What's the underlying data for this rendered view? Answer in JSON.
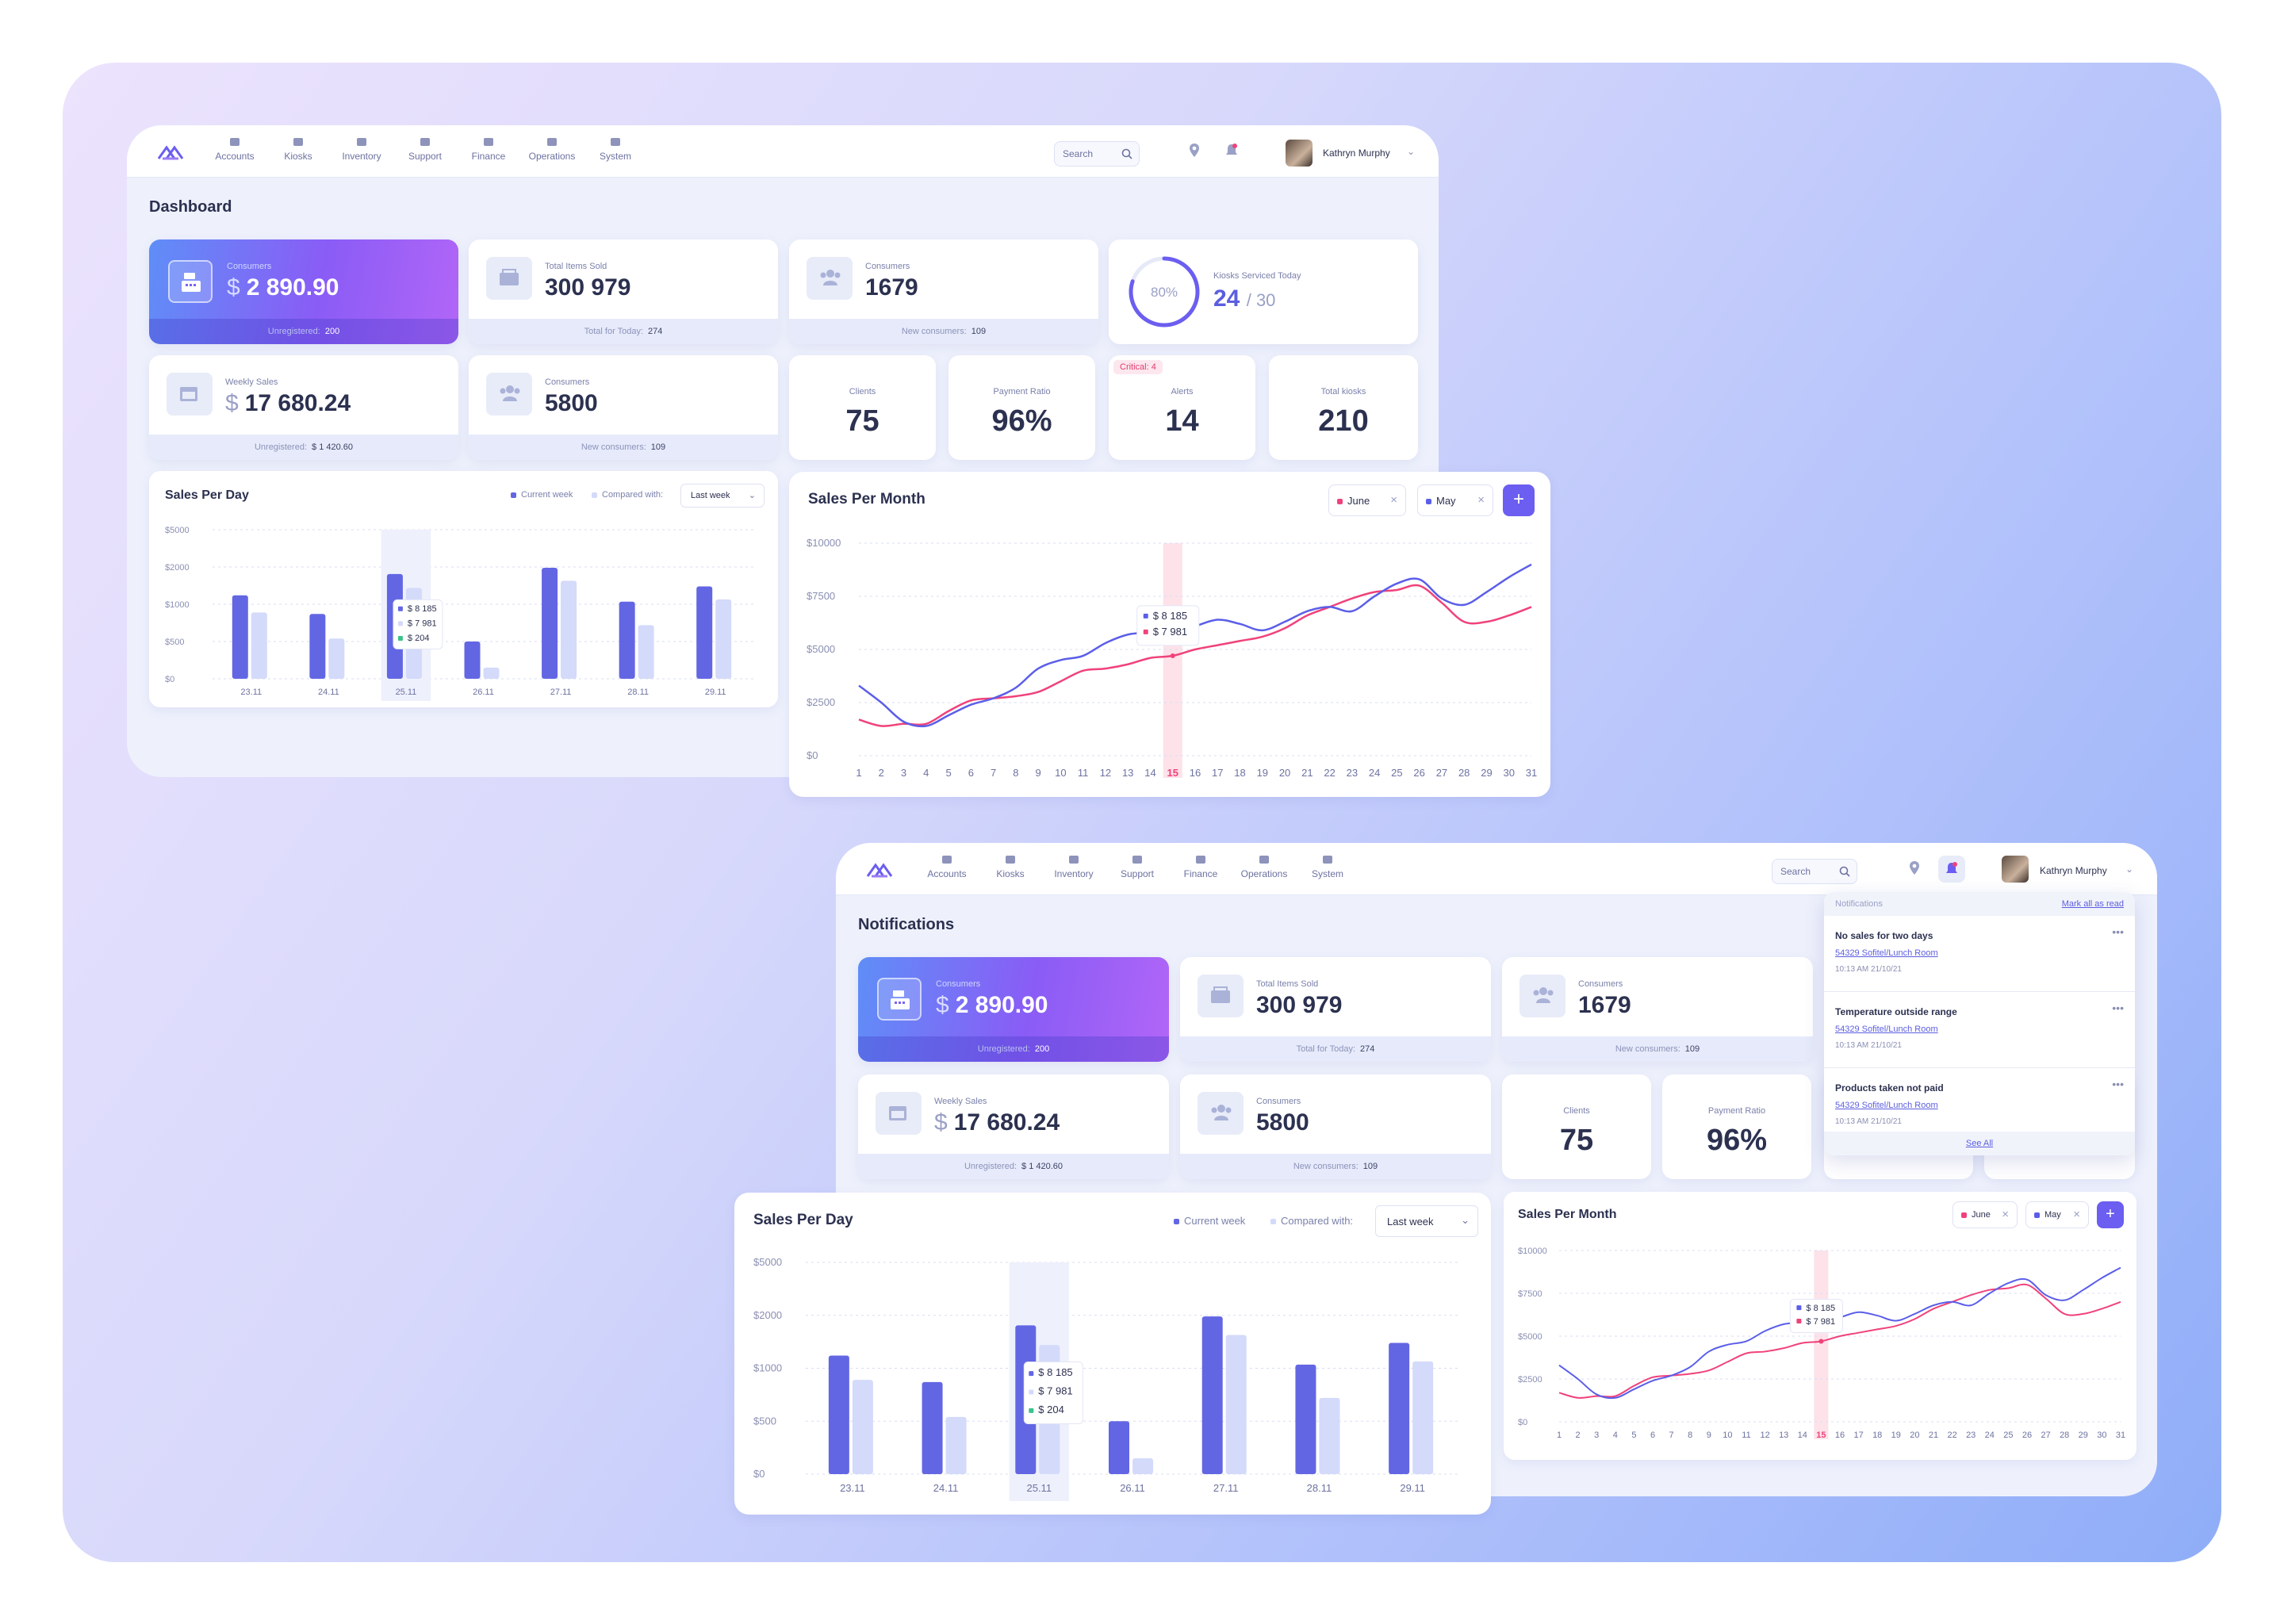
{
  "nav": {
    "items": [
      "Accounts",
      "Kiosks",
      "Inventory",
      "Support",
      "Finance",
      "Operations",
      "System"
    ],
    "search_placeholder": "Search",
    "user_name": "Kathryn Murphy"
  },
  "dashboard": {
    "title": "Dashboard",
    "consumers_card": {
      "label": "Consumers",
      "currency": "$",
      "value": "2 890.90",
      "foot_label": "Unregistered:",
      "foot_value": "200"
    },
    "items_sold": {
      "label": "Total Items Sold",
      "value": "300 979",
      "foot_label": "Total for Today:",
      "foot_value": "274"
    },
    "consumers2": {
      "label": "Consumers",
      "value": "1679",
      "foot_label": "New consumers:",
      "foot_value": "109"
    },
    "kiosks_serviced": {
      "label": "Kiosks Serviced Today",
      "ring": "80%",
      "ring_fraction": 0.8,
      "value": "24",
      "total": "/ 30"
    },
    "weekly_sales": {
      "label": "Weekly Sales",
      "currency": "$",
      "value": "17 680.24",
      "foot_label": "Unregistered:",
      "foot_value": "$ 1 420.60"
    },
    "consumers3": {
      "label": "Consumers",
      "value": "5800",
      "foot_label": "New consumers:",
      "foot_value": "109"
    },
    "clients": {
      "label": "Clients",
      "value": "75"
    },
    "payment_ratio": {
      "label": "Payment Ratio",
      "value": "96%"
    },
    "alerts": {
      "label": "Alerts",
      "value": "14",
      "critical": "Critical: 4"
    },
    "total_kiosks": {
      "label": "Total kiosks",
      "value": "210"
    }
  },
  "notifications_page": {
    "title": "Notifications",
    "panel": {
      "header": "Notifications",
      "mark_all": "Mark all as read",
      "items": [
        {
          "title": "No sales for two days",
          "link": "54329 Sofitel/Lunch Room",
          "time": "10:13 AM 21/10/21"
        },
        {
          "title": "Temperature outside range",
          "link": "54329 Sofitel/Lunch Room",
          "time": "10:13 AM 21/10/21"
        },
        {
          "title": "Products taken not paid",
          "link": "54329 Sofitel/Lunch Room",
          "time": "10:13 AM 21/10/21"
        }
      ],
      "see_all": "See All"
    }
  },
  "sales_per_day": {
    "title": "Sales Per Day",
    "legend_current": "Current week",
    "legend_compared": "Compared with:",
    "select": "Last week",
    "tooltip": {
      "a": "$ 8 185",
      "b": "$ 7 981",
      "c": "$ 204"
    }
  },
  "sales_per_month": {
    "title": "Sales Per Month",
    "tag_june": "June",
    "tag_may": "May",
    "add": "+",
    "tooltip": {
      "a": "$ 8 185",
      "b": "$ 7 981"
    }
  },
  "colors": {
    "accent": "#6b5ef0",
    "bar_current": "#6366e3",
    "bar_compared": "#d4dafa",
    "june": "#f0427a",
    "may": "#5b5ee8"
  },
  "chart_data": [
    {
      "type": "bar",
      "title": "Sales Per Day",
      "categories": [
        "23.11",
        "24.11",
        "25.11",
        "26.11",
        "27.11",
        "28.11",
        "29.11"
      ],
      "y_ticks": [
        "$5000",
        "$2000",
        "$1000",
        "$500",
        "$0"
      ],
      "series": [
        {
          "name": "Current week",
          "values": [
            1240,
            870,
            1810,
            500,
            1980,
            1070,
            1480
          ]
        },
        {
          "name": "Compared with:",
          "values": [
            890,
            540,
            1440,
            150,
            1630,
            720,
            1130
          ]
        }
      ],
      "highlight_category": "25.11"
    },
    {
      "type": "line",
      "title": "Sales Per Month",
      "x": [
        1,
        2,
        3,
        4,
        5,
        6,
        7,
        8,
        9,
        10,
        11,
        12,
        13,
        14,
        15,
        16,
        17,
        18,
        19,
        20,
        21,
        22,
        23,
        24,
        25,
        26,
        27,
        28,
        29,
        30,
        31
      ],
      "y_ticks": [
        "$10000",
        "$7500",
        "$5000",
        "$2500",
        "$0"
      ],
      "ylim": [
        0,
        10000
      ],
      "series": [
        {
          "name": "June",
          "values": [
            1700,
            1400,
            1500,
            1500,
            2100,
            2600,
            2700,
            2800,
            3000,
            3500,
            4000,
            4100,
            4300,
            4600,
            4700,
            5000,
            5200,
            5400,
            5600,
            6000,
            6600,
            7000,
            7400,
            7700,
            7800,
            8000,
            7200,
            6300,
            6300,
            6600,
            7000
          ]
        },
        {
          "name": "May",
          "values": [
            3300,
            2500,
            1600,
            1400,
            1900,
            2400,
            2700,
            3200,
            4100,
            4500,
            4700,
            5300,
            5700,
            5800,
            5900,
            6100,
            6400,
            6200,
            5900,
            6300,
            6800,
            7000,
            6800,
            7500,
            8100,
            8300,
            7400,
            7100,
            7700,
            8400,
            9000
          ]
        }
      ],
      "highlight_x": 15
    }
  ]
}
